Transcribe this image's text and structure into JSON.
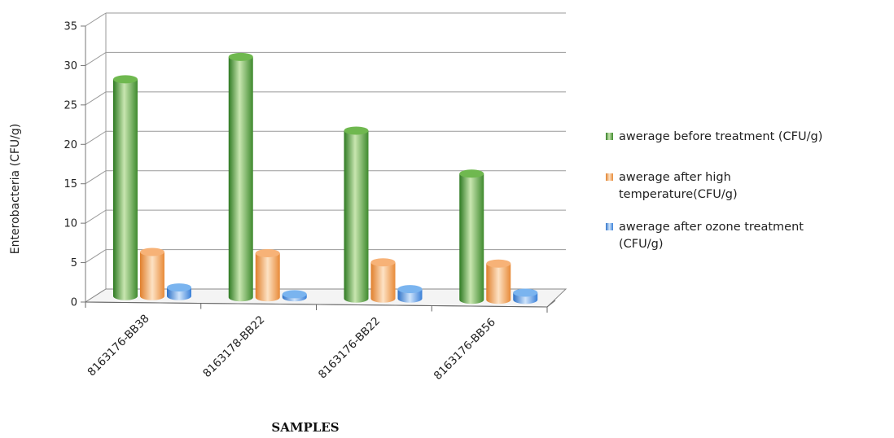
{
  "chart_data": {
    "type": "bar",
    "xlabel": "SAMPLES",
    "ylabel": "Enterobacteria (CFU/g)",
    "ylim": [
      0,
      35
    ],
    "yticks": [
      0,
      5,
      10,
      15,
      20,
      25,
      30,
      35
    ],
    "grid": true,
    "legend_position": "right",
    "categories": [
      "8163176-BB38",
      "8163178-BB22",
      "8163176-BB22",
      "8163176-BB56"
    ],
    "series": [
      {
        "name": "awerage before treatment (CFU/g)",
        "values": [
          27.5,
          30.5,
          21.3,
          16.0
        ],
        "color": "#4f9a3a"
      },
      {
        "name": "awerage after high temperature(CFU/g)",
        "legend_lines": [
          "awerage after high",
          "temperature(CFU/g)"
        ],
        "values": [
          5.6,
          5.6,
          4.6,
          4.6
        ],
        "color": "#f2a25a"
      },
      {
        "name": "awerage after ozone treatment (CFU/g)",
        "legend_lines": [
          "awerage after ozone treatment",
          "(CFU/g)"
        ],
        "values": [
          1.1,
          0.4,
          1.2,
          0.9
        ],
        "color": "#4a90e0"
      }
    ]
  }
}
